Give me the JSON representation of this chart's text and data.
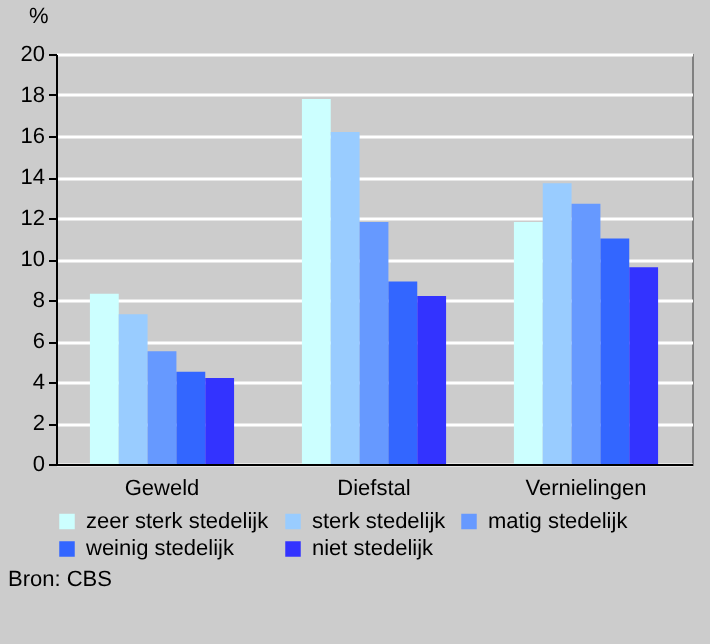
{
  "chart_data": {
    "type": "bar",
    "ylabel": "%",
    "categories": [
      "Geweld",
      "Diefstal",
      "Vernielingen"
    ],
    "series": [
      {
        "name": "zeer sterk stedelijk",
        "color": "#ccffff",
        "values": [
          8.3,
          17.8,
          11.8
        ]
      },
      {
        "name": "sterk stedelijk",
        "color": "#99ccff",
        "values": [
          7.3,
          16.2,
          13.7
        ]
      },
      {
        "name": "matig stedelijk",
        "color": "#6699ff",
        "values": [
          5.5,
          11.8,
          12.7
        ]
      },
      {
        "name": "weinig stedelijk",
        "color": "#3366ff",
        "values": [
          4.5,
          8.9,
          11.0
        ]
      },
      {
        "name": "niet stedelijk",
        "color": "#3333ff",
        "values": [
          4.2,
          8.2,
          9.6
        ]
      }
    ],
    "ylim": [
      0,
      20
    ],
    "yticks": [
      0,
      2,
      4,
      6,
      8,
      10,
      12,
      14,
      16,
      18,
      20
    ],
    "grid": "y",
    "legend": "bottom",
    "annotations": [
      "Bron: CBS"
    ]
  }
}
